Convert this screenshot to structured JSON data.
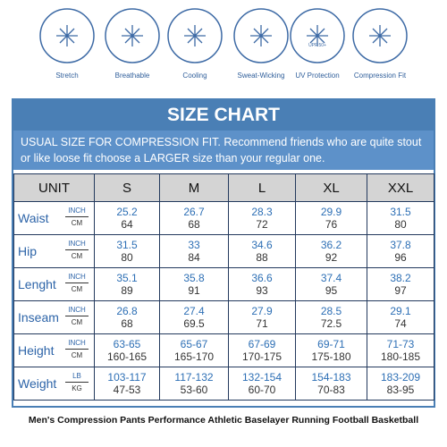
{
  "features": [
    {
      "label": "Stretch"
    },
    {
      "label": "Breathable"
    },
    {
      "label": "Cooling"
    },
    {
      "label": "Sweat-Wicking"
    },
    {
      "label": "UV Protection",
      "badge": "UPF 50+"
    },
    {
      "label": "Compression Fit"
    }
  ],
  "size_chart": {
    "title": "SIZE CHART",
    "note": "USUAL SIZE FOR COMPRESSION FIT. Recommend friends who are quite stout or like loose fit choose a LARGER size than your regular one.",
    "unit_header": "UNIT",
    "sizes": [
      "S",
      "M",
      "L",
      "XL",
      "XXL"
    ],
    "rows": [
      {
        "name": "Waist",
        "units": [
          "INCH",
          "CM"
        ],
        "values": [
          [
            "25.2",
            "64"
          ],
          [
            "26.7",
            "68"
          ],
          [
            "28.3",
            "72"
          ],
          [
            "29.9",
            "76"
          ],
          [
            "31.5",
            "80"
          ]
        ]
      },
      {
        "name": "Hip",
        "units": [
          "INCH",
          "CM"
        ],
        "values": [
          [
            "31.5",
            "80"
          ],
          [
            "33",
            "84"
          ],
          [
            "34.6",
            "88"
          ],
          [
            "36.2",
            "92"
          ],
          [
            "37.8",
            "96"
          ]
        ]
      },
      {
        "name": "Lenght",
        "units": [
          "INCH",
          "CM"
        ],
        "values": [
          [
            "35.1",
            "89"
          ],
          [
            "35.8",
            "91"
          ],
          [
            "36.6",
            "93"
          ],
          [
            "37.4",
            "95"
          ],
          [
            "38.2",
            "97"
          ]
        ]
      },
      {
        "name": "Inseam",
        "units": [
          "INCH",
          "CM"
        ],
        "values": [
          [
            "26.8",
            "68"
          ],
          [
            "27.4",
            "69.5"
          ],
          [
            "27.9",
            "71"
          ],
          [
            "28.5",
            "72.5"
          ],
          [
            "29.1",
            "74"
          ]
        ]
      },
      {
        "name": "Height",
        "units": [
          "INCH",
          "CM"
        ],
        "values": [
          [
            "63-65",
            "160-165"
          ],
          [
            "65-67",
            "165-170"
          ],
          [
            "67-69",
            "170-175"
          ],
          [
            "69-71",
            "175-180"
          ],
          [
            "71-73",
            "180-185"
          ]
        ]
      },
      {
        "name": "Weight",
        "units": [
          "LB",
          "KG"
        ],
        "values": [
          [
            "103-117",
            "47-53"
          ],
          [
            "117-132",
            "53-60"
          ],
          [
            "132-154",
            "60-70"
          ],
          [
            "154-183",
            "70-83"
          ],
          [
            "183-209",
            "83-95"
          ]
        ]
      }
    ]
  },
  "caption": "Men's Compression Pants Performance Athletic Baselayer Running Football Basketball"
}
